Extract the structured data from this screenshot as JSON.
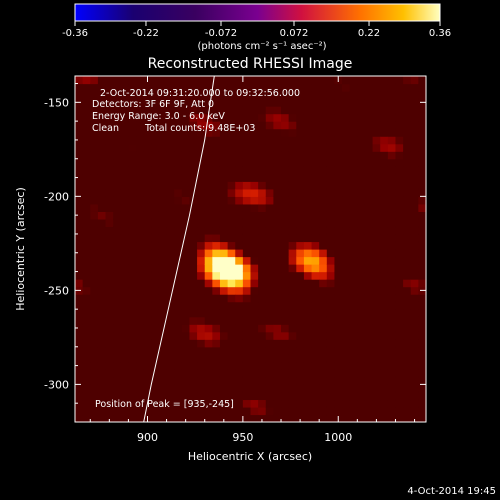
{
  "chart_data": {
    "type": "heatmap",
    "title": "Reconstructed RHESSI Image",
    "xlabel": "Heliocentric X (arcsec)",
    "ylabel": "Heliocentric Y (arcsec)",
    "xlim": [
      862,
      1046
    ],
    "ylim": [
      -320,
      -136
    ],
    "xticks": [
      900,
      950,
      1000
    ],
    "yticks": [
      -150,
      -200,
      -250,
      -300
    ],
    "colorbar": {
      "min": -0.36,
      "max": 0.36,
      "ticks": [
        -0.36,
        -0.22,
        -0.072,
        0.072,
        0.22,
        0.36
      ],
      "tick_labels": [
        "-0.36",
        "-0.22",
        "-0.072",
        "0.072",
        "0.22",
        "0.36"
      ],
      "unit_label": "(photons cm⁻² s⁻¹ asec⁻²)"
    },
    "annotations": {
      "time_range": "2-Oct-2014 09:31:20.000 to 09:32:56.000",
      "detectors": "Detectors: 3F 6F 9F, Att 0",
      "energy_range": "Energy Range: 3.0 - 6.0 keV",
      "method": "Clean",
      "total_counts": "Total counts: 9.48E+03",
      "peak": "Position of Peak = [935,-245]"
    },
    "sources": [
      {
        "x": 935,
        "y": -245,
        "value": 0.36
      },
      {
        "x": 945,
        "y": -255,
        "value": 0.33
      },
      {
        "x": 990,
        "y": -233,
        "value": 0.33
      },
      {
        "x": 940,
        "y": -215,
        "value": 0.28
      }
    ],
    "limb": [
      [
        935,
        -136
      ],
      [
        930,
        -170
      ],
      [
        922,
        -210
      ],
      [
        912,
        -255
      ],
      [
        902,
        -300
      ],
      [
        898,
        -320
      ]
    ],
    "colors": {
      "background": "#000000",
      "limb": "#ffffff"
    },
    "footer_date": "4-Oct-2014 19:45"
  }
}
